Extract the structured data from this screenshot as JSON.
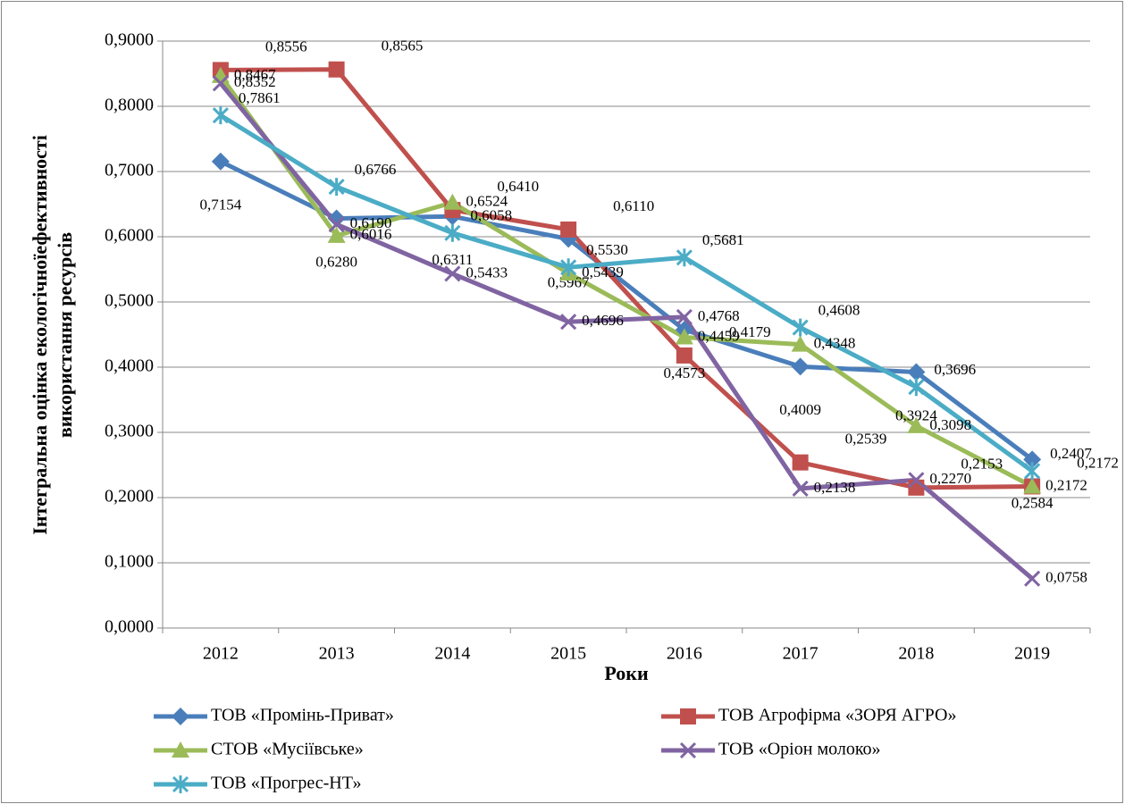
{
  "chart_data": {
    "type": "line",
    "ylabel": [
      "Інтегральна оцінка екологічноїефективності",
      "використання ресурсів"
    ],
    "xlabel": "Роки",
    "categories": [
      "2012",
      "2013",
      "2014",
      "2015",
      "2016",
      "2017",
      "2018",
      "2019"
    ],
    "ylim": [
      0,
      0.9
    ],
    "yticks": [
      {
        "value": 0,
        "label": "0,0000"
      },
      {
        "value": 0.1,
        "label": "0,1000"
      },
      {
        "value": 0.2,
        "label": "0,2000"
      },
      {
        "value": 0.3,
        "label": "0,3000"
      },
      {
        "value": 0.4,
        "label": "0,4000"
      },
      {
        "value": 0.5,
        "label": "0,5000"
      },
      {
        "value": 0.6,
        "label": "0,6000"
      },
      {
        "value": 0.7,
        "label": "0,7000"
      },
      {
        "value": 0.8,
        "label": "0,8000"
      },
      {
        "value": 0.9,
        "label": "0,9000"
      }
    ],
    "grid": true,
    "legend": "bottom",
    "series": [
      {
        "name": "ТОВ «Промінь-Приват»",
        "color": "#4a7ebb",
        "marker": "diamond",
        "values": [
          0.7154,
          0.628,
          0.6311,
          0.5967,
          0.4573,
          0.4009,
          0.3924,
          0.2584
        ],
        "value_labels": [
          "0,7154",
          "0,6280",
          "0,6311",
          "0,5967",
          "0,4573",
          "0,4009",
          "0,3924",
          "0,2584"
        ]
      },
      {
        "name": "ТОВ Агрофірма «ЗОРЯ АГРО»",
        "color": "#c0504d",
        "marker": "square",
        "values": [
          0.8556,
          0.8565,
          0.641,
          0.611,
          0.4179,
          0.2539,
          0.2153,
          0.2172
        ],
        "value_labels": [
          "0,8556",
          "0,8565",
          "0,6410",
          "0,6110",
          "0,4179",
          "0,2539",
          "0,2153",
          "0,2172"
        ]
      },
      {
        "name": "СТОВ «Мусіївське»",
        "color": "#9bbb59",
        "marker": "triangle",
        "values": [
          0.8467,
          0.6016,
          0.6524,
          0.5439,
          0.4459,
          0.4348,
          0.3098,
          0.2172
        ],
        "value_labels": [
          "0,8467",
          "0,6016",
          "0,6524",
          "0,5439",
          "0,4459",
          "0,4348",
          "0,3098",
          "0,2172"
        ]
      },
      {
        "name": "ТОВ «Оріон молоко»",
        "color": "#8064a2",
        "marker": "x",
        "values": [
          0.8352,
          0.619,
          0.5433,
          0.4696,
          0.4768,
          0.2138,
          0.227,
          0.0758
        ],
        "value_labels": [
          "0,8352",
          "0,6190",
          "0,5433",
          "0,4696",
          "0,4768",
          "0,2138",
          "0,2270",
          "0,0758"
        ]
      },
      {
        "name": "ТОВ «Прогрес-НТ»",
        "color": "#4bacc6",
        "marker": "star",
        "values": [
          0.7861,
          0.6766,
          0.6058,
          0.553,
          0.5681,
          0.4608,
          0.3696,
          0.2407
        ],
        "value_labels": [
          "0,7861",
          "0,6766",
          "0,6058",
          "0,5530",
          "0,5681",
          "0,4608",
          "0,3696",
          "0,2407"
        ]
      }
    ]
  }
}
